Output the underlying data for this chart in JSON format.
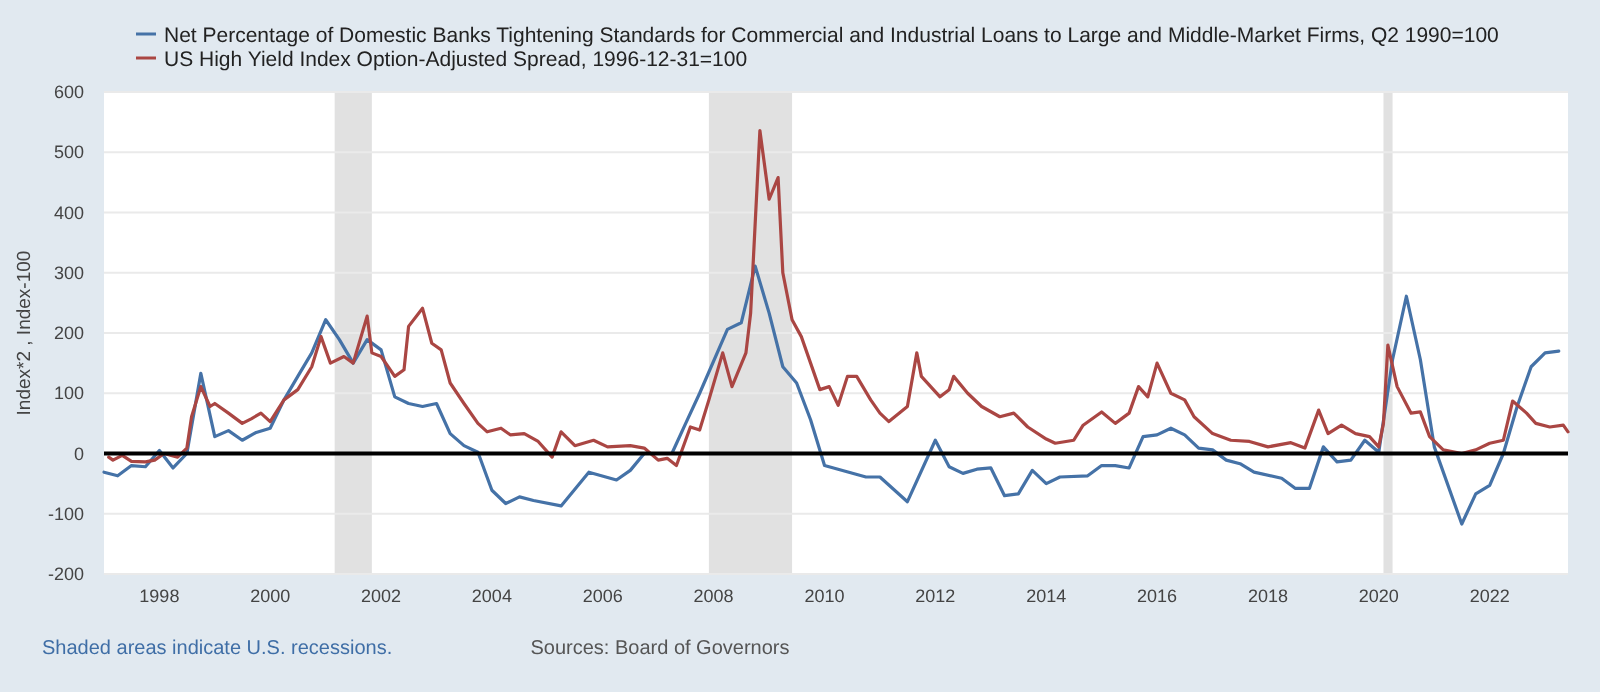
{
  "chart_data": {
    "type": "line",
    "xlabel": null,
    "ylabel": "Index*2 , Index-100",
    "xlim": [
      "1997-01",
      "2023-06"
    ],
    "xticks": [
      "1998",
      "2000",
      "2002",
      "2004",
      "2006",
      "2008",
      "2010",
      "2012",
      "2014",
      "2016",
      "2018",
      "2020",
      "2022"
    ],
    "ylim": [
      -200,
      600
    ],
    "yticks": [
      -200,
      -100,
      0,
      100,
      200,
      300,
      400,
      500,
      600
    ],
    "grid": "y",
    "legend": "top left",
    "line_style": "solid",
    "marker": "none",
    "ref_lines": [
      {
        "axis": "y",
        "value": 0,
        "color": "#000000",
        "line_style": "solid"
      }
    ],
    "bands": [
      {
        "axis": "x",
        "from": "2001-03",
        "to": "2001-11",
        "color": "#e1e1e1"
      },
      {
        "axis": "x",
        "from": "2007-12",
        "to": "2009-06",
        "color": "#e1e1e1"
      },
      {
        "axis": "x",
        "from": "2020-02",
        "to": "2020-04",
        "color": "#e1e1e1"
      }
    ],
    "annotations": [
      "Shaded areas indicate U.S. recessions.",
      "Sources: Board of Governors"
    ],
    "series": [
      {
        "name": "Net Percentage of Domestic Banks Tightening Standards for Commercial and Industrial Loans to Large and Middle-Market Firms, Q2 1990=100",
        "color": "#4572a7",
        "x": [
          "1997-01",
          "1997-04",
          "1997-07",
          "1997-10",
          "1998-01",
          "1998-04",
          "1998-07",
          "1998-10",
          "1999-01",
          "1999-04",
          "1999-07",
          "1999-10",
          "2000-01",
          "2000-04",
          "2000-07",
          "2000-10",
          "2001-01",
          "2001-04",
          "2001-07",
          "2001-10",
          "2002-01",
          "2002-04",
          "2002-07",
          "2002-10",
          "2003-01",
          "2003-04",
          "2003-07",
          "2003-10",
          "2004-01",
          "2004-04",
          "2004-07",
          "2004-10",
          "2005-04",
          "2005-10",
          "2006-04",
          "2006-07",
          "2006-10",
          "2007-04",
          "2007-07",
          "2007-10",
          "2008-04",
          "2008-07",
          "2008-10",
          "2009-01",
          "2009-04",
          "2009-07",
          "2009-10",
          "2010-01",
          "2010-10",
          "2011-01",
          "2011-07",
          "2012-01",
          "2012-04",
          "2012-07",
          "2012-10",
          "2013-01",
          "2013-04",
          "2013-07",
          "2013-10",
          "2014-01",
          "2014-04",
          "2014-10",
          "2015-01",
          "2015-04",
          "2015-07",
          "2015-10",
          "2016-01",
          "2016-04",
          "2016-07",
          "2016-10",
          "2017-01",
          "2017-04",
          "2017-07",
          "2017-10",
          "2018-04",
          "2018-07",
          "2018-10",
          "2019-01",
          "2019-04",
          "2019-07",
          "2019-10",
          "2020-01",
          "2020-04",
          "2020-07",
          "2020-10",
          "2021-01",
          "2021-07",
          "2021-10",
          "2022-01",
          "2022-04",
          "2022-07",
          "2022-10",
          "2023-01",
          "2023-04"
        ],
        "values": [
          -31,
          -37,
          -20,
          -22,
          5,
          -24,
          0,
          133,
          28,
          38,
          22,
          35,
          42,
          89,
          128,
          167,
          222,
          189,
          150,
          189,
          172,
          94,
          83,
          78,
          83,
          33,
          13,
          2,
          -61,
          -83,
          -72,
          -78,
          -87,
          -31,
          -44,
          -28,
          0,
          0,
          50,
          100,
          206,
          217,
          311,
          233,
          144,
          117,
          56,
          -20,
          -39,
          -39,
          -80,
          22,
          -22,
          -33,
          -26,
          -24,
          -70,
          -67,
          -28,
          -50,
          -39,
          -37,
          -20,
          -20,
          -24,
          28,
          31,
          42,
          31,
          9,
          6,
          -11,
          -17,
          -31,
          -41,
          -58,
          -58,
          11,
          -14,
          -11,
          22,
          2,
          156,
          261,
          156,
          11,
          -117,
          -67,
          -53,
          0,
          78,
          144,
          167,
          170
        ]
      },
      {
        "name": "US High Yield Index Option-Adjusted Spread, 1996-12-31=100",
        "color": "#aa4643",
        "x": [
          "1997-02",
          "1997-03",
          "1997-05",
          "1997-07",
          "1997-10",
          "1997-12",
          "1998-02",
          "1998-05",
          "1998-07",
          "1998-08",
          "1998-10",
          "1998-12",
          "1999-01",
          "1999-04",
          "1999-07",
          "1999-09",
          "1999-11",
          "2000-01",
          "2000-04",
          "2000-07",
          "2000-10",
          "2000-12",
          "2001-02",
          "2001-05",
          "2001-07",
          "2001-10",
          "2001-11",
          "2002-01",
          "2002-04",
          "2002-06",
          "2002-07",
          "2002-10",
          "2002-12",
          "2003-02",
          "2003-04",
          "2003-07",
          "2003-10",
          "2003-12",
          "2004-03",
          "2004-05",
          "2004-08",
          "2004-11",
          "2005-02",
          "2005-04",
          "2005-07",
          "2005-11",
          "2006-02",
          "2006-07",
          "2006-10",
          "2007-01",
          "2007-03",
          "2007-05",
          "2007-08",
          "2007-10",
          "2007-12",
          "2008-03",
          "2008-05",
          "2008-08",
          "2008-09",
          "2008-11",
          "2009-01",
          "2009-03",
          "2009-04",
          "2009-06",
          "2009-08",
          "2009-10",
          "2009-12",
          "2010-02",
          "2010-04",
          "2010-06",
          "2010-08",
          "2010-11",
          "2011-01",
          "2011-03",
          "2011-07",
          "2011-09",
          "2011-10",
          "2012-02",
          "2012-04",
          "2012-05",
          "2012-08",
          "2012-11",
          "2013-03",
          "2013-06",
          "2013-09",
          "2014-01",
          "2014-03",
          "2014-07",
          "2014-09",
          "2015-01",
          "2015-04",
          "2015-07",
          "2015-09",
          "2015-11",
          "2016-01",
          "2016-04",
          "2016-07",
          "2016-09",
          "2017-01",
          "2017-05",
          "2017-09",
          "2018-01",
          "2018-06",
          "2018-09",
          "2018-12",
          "2019-02",
          "2019-05",
          "2019-08",
          "2019-11",
          "2020-01",
          "2020-02",
          "2020-03",
          "2020-05",
          "2020-08",
          "2020-10",
          "2020-12",
          "2021-03",
          "2021-07",
          "2021-10",
          "2022-01",
          "2022-04",
          "2022-06",
          "2022-09",
          "2022-11",
          "2023-02",
          "2023-05",
          "2023-06"
        ],
        "values": [
          -6,
          -11,
          -3,
          -13,
          -14,
          -11,
          0,
          -6,
          9,
          61,
          111,
          78,
          83,
          67,
          50,
          58,
          67,
          53,
          89,
          106,
          144,
          194,
          150,
          161,
          150,
          228,
          167,
          161,
          128,
          139,
          211,
          241,
          183,
          172,
          117,
          83,
          50,
          36,
          42,
          31,
          33,
          20,
          -6,
          36,
          13,
          22,
          11,
          13,
          9,
          -11,
          -8,
          -20,
          44,
          39,
          89,
          167,
          111,
          167,
          233,
          536,
          422,
          458,
          300,
          222,
          194,
          150,
          106,
          111,
          80,
          128,
          128,
          89,
          67,
          53,
          78,
          167,
          128,
          94,
          106,
          128,
          100,
          78,
          61,
          67,
          44,
          24,
          17,
          22,
          47,
          69,
          50,
          67,
          111,
          94,
          150,
          100,
          89,
          61,
          33,
          22,
          20,
          11,
          18,
          9,
          72,
          33,
          47,
          33,
          28,
          11,
          50,
          180,
          111,
          67,
          69,
          28,
          6,
          0,
          6,
          17,
          22,
          87,
          67,
          50,
          44,
          47,
          36
        ]
      }
    ]
  }
}
